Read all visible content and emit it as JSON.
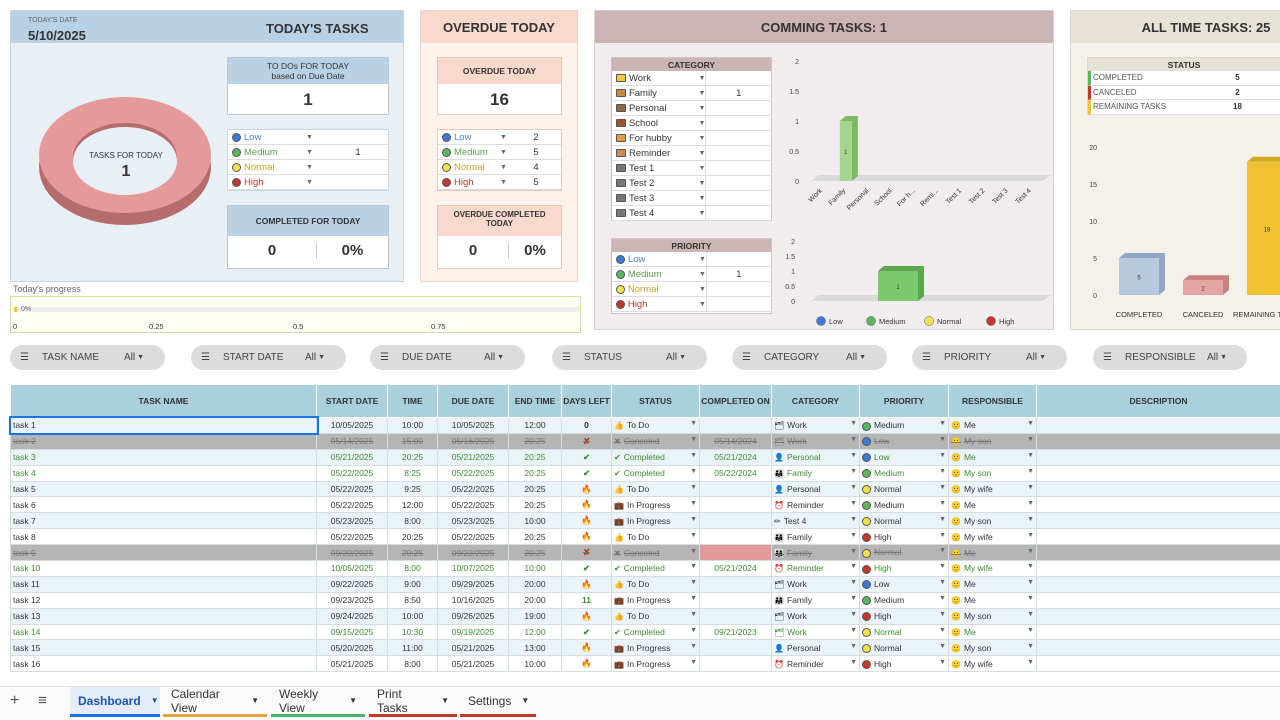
{
  "today": {
    "date_label": "TODAY'S DATE",
    "date": "5/10/2025",
    "title": "TODAY'S TASKS",
    "todo_title": "TO DOs FOR TODAY",
    "todo_sub": "based on Due Date",
    "todo_count": "1",
    "donut_label": "TASKS FOR TODAY",
    "donut_value": "1",
    "priorities": [
      {
        "label": "Low",
        "value": ""
      },
      {
        "label": "Medium",
        "value": "1"
      },
      {
        "label": "Normal",
        "value": ""
      },
      {
        "label": "High",
        "value": ""
      }
    ],
    "completed_title": "COMPLETED FOR TODAY",
    "completed_count": "0",
    "completed_pct": "0%",
    "progress_label": "Today's progress",
    "progress_value": "0%",
    "progress_ticks": [
      "0",
      "0.25",
      "0.5",
      "0.75"
    ]
  },
  "overdue": {
    "title": "OVERDUE TODAY",
    "sub_title": "OVERDUE TODAY",
    "count": "16",
    "priorities": [
      {
        "label": "Low",
        "value": "2"
      },
      {
        "label": "Medium",
        "value": "5"
      },
      {
        "label": "Normal",
        "value": "4"
      },
      {
        "label": "High",
        "value": "5"
      }
    ],
    "completed_title": "OVERDUE COMPLETED TODAY",
    "completed_count": "0",
    "completed_pct": "0%"
  },
  "coming": {
    "title": "COMMING TASKS: 1",
    "category_header": "CATEGORY",
    "categories": [
      {
        "label": "Work",
        "value": ""
      },
      {
        "label": "Family",
        "value": "1"
      },
      {
        "label": "Personal",
        "value": ""
      },
      {
        "label": "School",
        "value": ""
      },
      {
        "label": "For hubby",
        "value": ""
      },
      {
        "label": "Reminder",
        "value": ""
      },
      {
        "label": "Test 1",
        "value": ""
      },
      {
        "label": "Test 2",
        "value": ""
      },
      {
        "label": "Test 3",
        "value": ""
      },
      {
        "label": "Test 4",
        "value": ""
      }
    ],
    "priority_header": "PRIORITY",
    "priorities": [
      {
        "label": "Low",
        "value": ""
      },
      {
        "label": "Medium",
        "value": "1"
      },
      {
        "label": "Normal",
        "value": ""
      },
      {
        "label": "High",
        "value": ""
      }
    ]
  },
  "alltime": {
    "title": "ALL TIME TASKS: 25",
    "status_header": "STATUS",
    "status": [
      {
        "label": "COMPLETED",
        "value": "5"
      },
      {
        "label": "CANCELED",
        "value": "2"
      },
      {
        "label": "REMAINING TASKS",
        "value": "18"
      }
    ]
  },
  "chart_data": [
    {
      "type": "bar",
      "categories": [
        "Work",
        "Family",
        "Personal",
        "School",
        "For h...",
        "Remi...",
        "Test 1",
        "Test 2",
        "Test 3",
        "Test 4"
      ],
      "values": [
        0,
        1,
        0,
        0,
        0,
        0,
        0,
        0,
        0,
        0
      ],
      "ylim": [
        0,
        2
      ],
      "yticks": [
        "2",
        "1.5",
        "1",
        "0.5",
        "0"
      ]
    },
    {
      "type": "bar",
      "categories": [
        "Low",
        "Medium",
        "Normal",
        "High"
      ],
      "values": [
        0,
        1,
        0,
        0
      ],
      "ylim": [
        0,
        2
      ],
      "yticks": [
        "2",
        "1.5",
        "1",
        "0.5",
        "0"
      ],
      "legend": [
        "Low",
        "Medium",
        "Normal",
        "High"
      ],
      "legend_placement": "bottom"
    },
    {
      "type": "bar",
      "categories": [
        "COMPLETED",
        "CANCELED",
        "REMAINING T..."
      ],
      "values": [
        5,
        2,
        18
      ],
      "ylim": [
        0,
        20
      ],
      "yticks": [
        "20",
        "15",
        "10",
        "5",
        "0"
      ]
    }
  ],
  "filters": [
    {
      "label": "TASK NAME",
      "value": "All"
    },
    {
      "label": "START DATE",
      "value": "All"
    },
    {
      "label": "DUE DATE",
      "value": "All"
    },
    {
      "label": "STATUS",
      "value": "All"
    },
    {
      "label": "CATEGORY",
      "value": "All"
    },
    {
      "label": "PRIORITY",
      "value": "All"
    },
    {
      "label": "RESPONSIBLE",
      "value": "All"
    }
  ],
  "table": {
    "headers": [
      "TASK NAME",
      "START DATE",
      "TIME",
      "DUE DATE",
      "END TIME",
      "DAYS LEFT",
      "STATUS",
      "COMPLETED ON",
      "CATEGORY",
      "PRIORITY",
      "RESPONSIBLE",
      "DESCRIPTION"
    ],
    "rows": [
      [
        "task 1",
        "10/05/2025",
        "10:00",
        "10/05/2025",
        "12:00",
        "0",
        "To Do",
        "",
        "Work",
        "Medium",
        "Me",
        ""
      ],
      [
        "task 2",
        "05/14/2025",
        "15:00",
        "05/16/2025",
        "20:25",
        "✘",
        "Canceled",
        "05/14/2024",
        "Work",
        "Low",
        "My son",
        ""
      ],
      [
        "task 3",
        "05/21/2025",
        "20:25",
        "05/21/2025",
        "20:25",
        "✔",
        "Completed",
        "05/21/2024",
        "Personal",
        "Low",
        "Me",
        ""
      ],
      [
        "task 4",
        "05/22/2025",
        "8:25",
        "05/22/2025",
        "20:25",
        "✔",
        "Completed",
        "05/22/2024",
        "Family",
        "Medium",
        "My son",
        ""
      ],
      [
        "task 5",
        "05/22/2025",
        "9:25",
        "05/22/2025",
        "20:25",
        "🔥",
        "To Do",
        "",
        "Personal",
        "Normal",
        "My wife",
        ""
      ],
      [
        "task 6",
        "05/22/2025",
        "12:00",
        "05/22/2025",
        "20:25",
        "🔥",
        "In Progress",
        "",
        "Reminder",
        "Medium",
        "Me",
        ""
      ],
      [
        "task 7",
        "05/23/2025",
        "8:00",
        "05/23/2025",
        "10:00",
        "🔥",
        "In Progress",
        "",
        "Test 4",
        "Normal",
        "My son",
        ""
      ],
      [
        "task 8",
        "05/22/2025",
        "20:25",
        "05/22/2025",
        "20:25",
        "🔥",
        "To Do",
        "",
        "Family",
        "High",
        "My wife",
        ""
      ],
      [
        "task 9",
        "09/20/2025",
        "20:25",
        "09/22/2025",
        "20:25",
        "✘",
        "Canceled",
        "",
        "Family",
        "Normal",
        "Me",
        ""
      ],
      [
        "task 10",
        "10/05/2025",
        "8:00",
        "10/07/2025",
        "10:00",
        "✔",
        "Completed",
        "05/21/2024",
        "Reminder",
        "High",
        "My wife",
        ""
      ],
      [
        "task 11",
        "09/22/2025",
        "9:00",
        "09/29/2025",
        "20:00",
        "🔥",
        "To Do",
        "",
        "Work",
        "Low",
        "Me",
        ""
      ],
      [
        "task 12",
        "09/23/2025",
        "8:50",
        "10/16/2025",
        "20:00",
        "11",
        "In Progress",
        "",
        "Family",
        "Medium",
        "Me",
        ""
      ],
      [
        "task 13",
        "09/24/2025",
        "10:00",
        "09/26/2025",
        "19:00",
        "🔥",
        "To Do",
        "",
        "Work",
        "High",
        "My son",
        ""
      ],
      [
        "task 14",
        "09/15/2025",
        "10:30",
        "09/19/2025",
        "12:00",
        "✔",
        "Completed",
        "09/21/2023",
        "Work",
        "Normal",
        "Me",
        ""
      ],
      [
        "task 15",
        "05/20/2025",
        "11:00",
        "05/21/2025",
        "13:00",
        "🔥",
        "In Progress",
        "",
        "Personal",
        "Normal",
        "My son",
        ""
      ],
      [
        "task 16",
        "05/21/2025",
        "8:00",
        "05/21/2025",
        "10:00",
        "🔥",
        "In Progress",
        "",
        "Reminder",
        "High",
        "My wife",
        ""
      ]
    ]
  },
  "sheets": [
    {
      "label": "Dashboard"
    },
    {
      "label": "Calendar View"
    },
    {
      "label": "Weekly View"
    },
    {
      "label": "Print Tasks"
    },
    {
      "label": "Settings"
    }
  ],
  "colors": {
    "low": "#3a7bd5",
    "medium": "#5bb55b",
    "normal": "#f3e34a",
    "high": "#c0392b",
    "today_header": "#b8d1e5",
    "overdue_header": "#f8d9cc",
    "coming_header": "#cdb4b4",
    "alltime_header": "#e6e2d6",
    "table_header": "#a9d0dc"
  }
}
